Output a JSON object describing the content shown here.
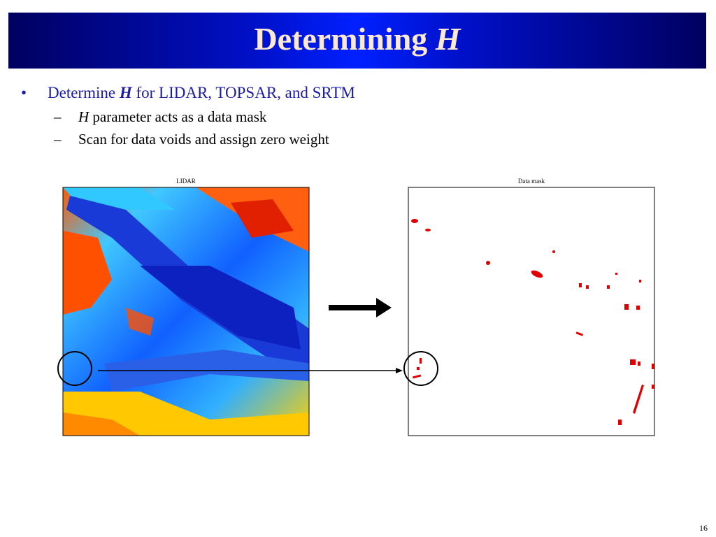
{
  "title": {
    "text": "Determining",
    "emphasis": "H"
  },
  "bullets": [
    {
      "text": "Determine",
      "emphasis": "H",
      "rest": "for LIDAR, TOPSAR, and SRTM",
      "sub": [
        {
          "emphasis": "H",
          "text": "parameter acts as a data mask"
        },
        {
          "text": "Scan for data voids and assign zero weight"
        }
      ]
    }
  ],
  "figures": {
    "left_label": "LIDAR",
    "right_label": "Data mask"
  },
  "page_number": "16"
}
